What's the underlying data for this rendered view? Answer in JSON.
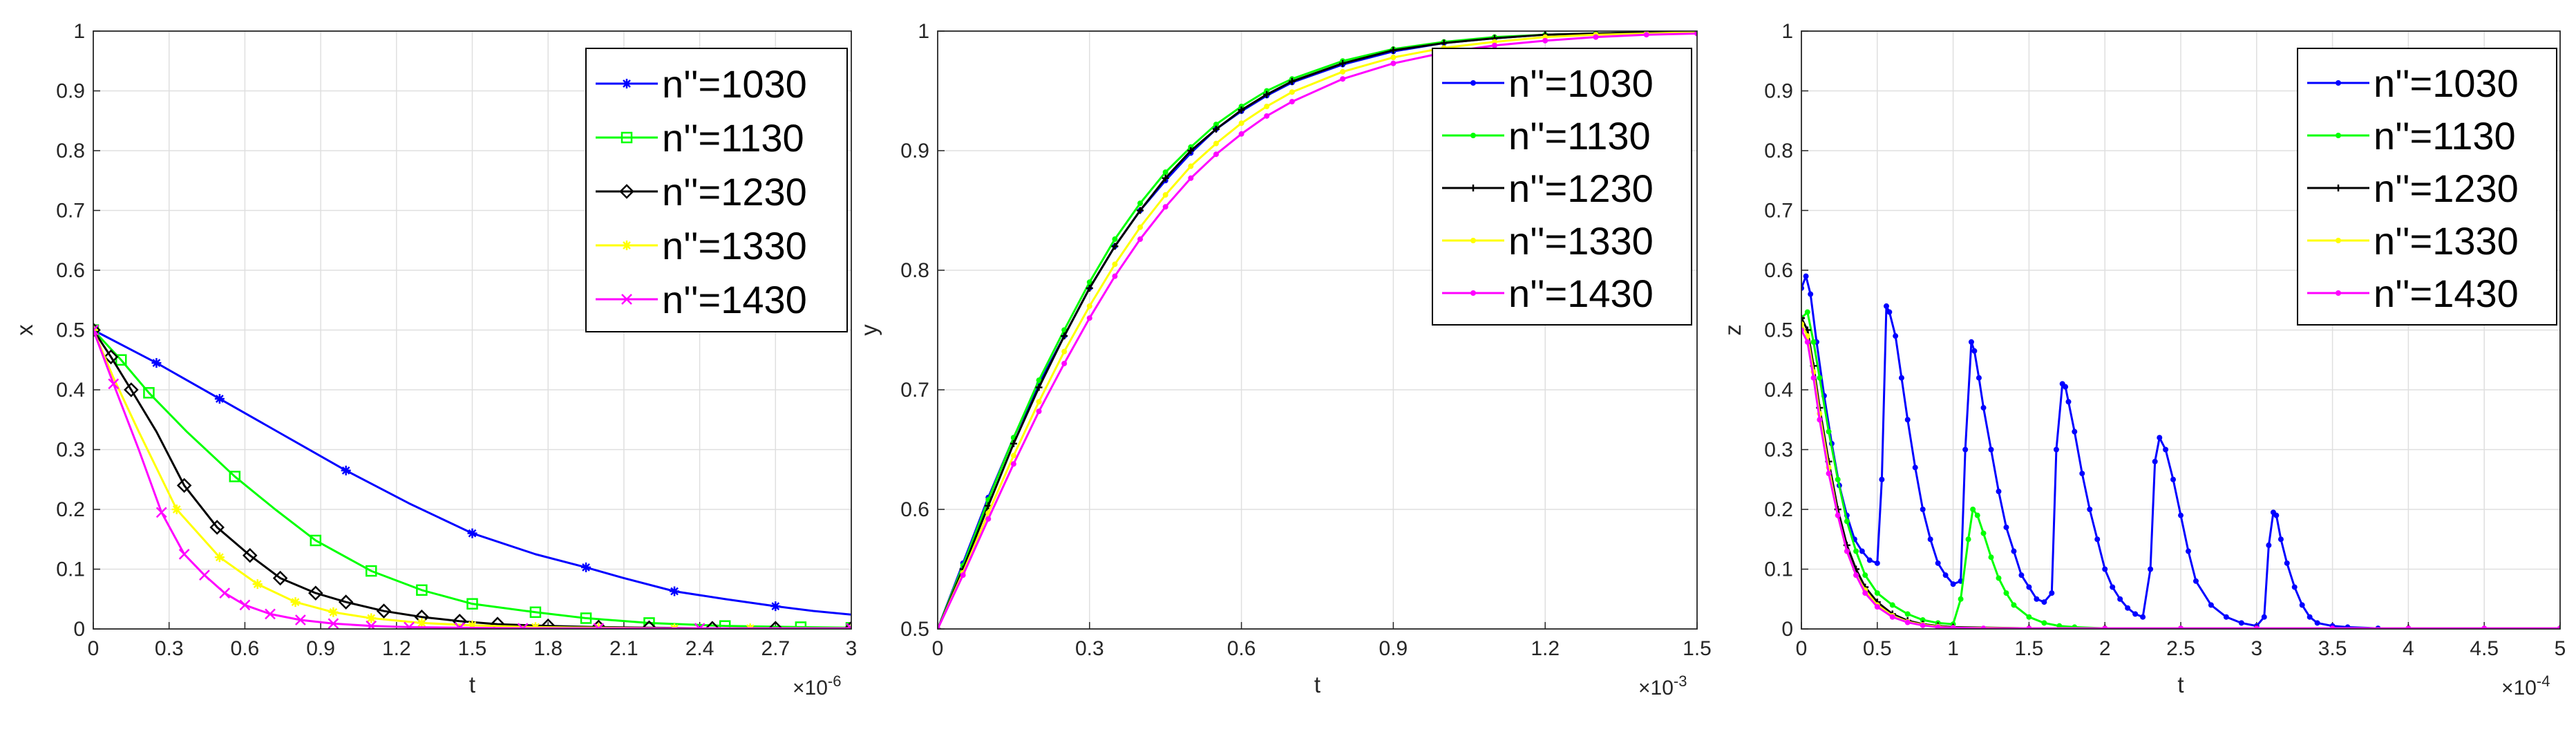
{
  "colors": {
    "n1030": "#0000FF",
    "n1130": "#00FF00",
    "n1230": "#000000",
    "n1330": "#FFFF00",
    "n1430": "#FF00FF",
    "grid": "#DFDFDF",
    "axis": "#262626"
  },
  "chart_data": [
    {
      "type": "line",
      "title": "",
      "xlabel": "t",
      "ylabel": "x",
      "x_exponent_label": "×10",
      "x_exponent": "-6",
      "xlim": [
        0,
        3
      ],
      "ylim": [
        0,
        1
      ],
      "xticks": [
        "0",
        "0.3",
        "0.6",
        "0.9",
        "1.2",
        "1.5",
        "1.8",
        "2.1",
        "2.4",
        "2.7",
        "3"
      ],
      "yticks": [
        "0",
        "0.1",
        "0.2",
        "0.3",
        "0.4",
        "0.5",
        "0.6",
        "0.7",
        "0.8",
        "0.9",
        "1"
      ],
      "grid": true,
      "legend_position": "top-right",
      "series": [
        {
          "name": "n''=1030",
          "color": "#0000FF",
          "marker": "star",
          "x": [
            0,
            0.25,
            0.5,
            0.75,
            1.0,
            1.25,
            1.5,
            1.75,
            1.95,
            2.1,
            2.3,
            2.5,
            2.7,
            2.85,
            3.0
          ],
          "y": [
            0.5,
            0.445,
            0.385,
            0.325,
            0.265,
            0.21,
            0.16,
            0.125,
            0.103,
            0.085,
            0.063,
            0.05,
            0.038,
            0.03,
            0.024
          ],
          "marker_idx": [
            0,
            1,
            2,
            4,
            6,
            8,
            10,
            12
          ]
        },
        {
          "name": "n''=1130",
          "color": "#00FF00",
          "marker": "square",
          "x": [
            0,
            0.11,
            0.22,
            0.37,
            0.56,
            0.72,
            0.88,
            1.1,
            1.3,
            1.5,
            1.75,
            1.95,
            2.2,
            2.5,
            2.8,
            3.0
          ],
          "y": [
            0.5,
            0.45,
            0.395,
            0.33,
            0.255,
            0.2,
            0.148,
            0.097,
            0.065,
            0.042,
            0.028,
            0.018,
            0.01,
            0.005,
            0.003,
            0.002
          ],
          "marker_idx": [
            0,
            1,
            2,
            4,
            6,
            7,
            8,
            9,
            10,
            11,
            12,
            13,
            14,
            15
          ]
        },
        {
          "name": "n''=1230",
          "color": "#000000",
          "marker": "diamond",
          "x": [
            0,
            0.07,
            0.15,
            0.25,
            0.36,
            0.49,
            0.62,
            0.74,
            0.88,
            1.0,
            1.15,
            1.3,
            1.45,
            1.6,
            1.8,
            2.0,
            2.2,
            2.45,
            2.7,
            3.0
          ],
          "y": [
            0.5,
            0.455,
            0.4,
            0.33,
            0.24,
            0.17,
            0.123,
            0.085,
            0.06,
            0.045,
            0.03,
            0.02,
            0.013,
            0.008,
            0.005,
            0.003,
            0.002,
            0.001,
            0.001,
            0.001
          ],
          "marker_idx": [
            0,
            1,
            2,
            4,
            5,
            6,
            7,
            8,
            9,
            10,
            11,
            12,
            13,
            14,
            15,
            16,
            17,
            18,
            19
          ]
        },
        {
          "name": "n''=1330",
          "color": "#FFFF00",
          "marker": "star",
          "x": [
            0,
            0.08,
            0.18,
            0.33,
            0.5,
            0.65,
            0.8,
            0.95,
            1.1,
            1.3,
            1.5,
            1.75,
            2.0,
            2.3,
            2.6,
            3.0
          ],
          "y": [
            0.5,
            0.42,
            0.33,
            0.2,
            0.12,
            0.075,
            0.045,
            0.028,
            0.018,
            0.01,
            0.006,
            0.003,
            0.002,
            0.001,
            0.001,
            0.001
          ],
          "marker_idx": [
            0,
            3,
            4,
            5,
            6,
            7,
            8,
            9,
            10,
            11,
            12,
            13,
            14,
            15
          ]
        },
        {
          "name": "n''=1430",
          "color": "#FF00FF",
          "marker": "x",
          "x": [
            0,
            0.08,
            0.18,
            0.27,
            0.36,
            0.44,
            0.52,
            0.6,
            0.7,
            0.82,
            0.95,
            1.1,
            1.25,
            1.45,
            1.7,
            2.0,
            2.4,
            3.0
          ],
          "y": [
            0.5,
            0.41,
            0.3,
            0.195,
            0.125,
            0.09,
            0.06,
            0.04,
            0.025,
            0.015,
            0.009,
            0.005,
            0.003,
            0.002,
            0.001,
            0.001,
            0.001,
            0.001
          ],
          "marker_idx": [
            0,
            1,
            3,
            4,
            5,
            6,
            7,
            8,
            9,
            10,
            11,
            12,
            13,
            14,
            15,
            16,
            17
          ]
        }
      ]
    },
    {
      "type": "line",
      "title": "",
      "xlabel": "t",
      "ylabel": "y",
      "x_exponent_label": "×10",
      "x_exponent": "-3",
      "xlim": [
        0,
        1.5
      ],
      "ylim": [
        0.5,
        1
      ],
      "xticks": [
        "0",
        "0.3",
        "0.6",
        "0.9",
        "1.2",
        "1.5"
      ],
      "yticks": [
        "0.5",
        "0.6",
        "0.7",
        "0.8",
        "0.9",
        "1"
      ],
      "grid": true,
      "legend_position": "top-right",
      "series": [
        {
          "name": "n''=1030",
          "color": "#0000FF",
          "marker": "dot",
          "x": [
            0,
            0.05,
            0.1,
            0.15,
            0.2,
            0.25,
            0.3,
            0.35,
            0.4,
            0.45,
            0.5,
            0.55,
            0.6,
            0.65,
            0.7,
            0.8,
            0.9,
            1.0,
            1.1,
            1.2,
            1.3,
            1.4,
            1.5
          ],
          "y": [
            0.5,
            0.555,
            0.61,
            0.66,
            0.705,
            0.745,
            0.785,
            0.82,
            0.85,
            0.875,
            0.898,
            0.918,
            0.933,
            0.946,
            0.957,
            0.972,
            0.983,
            0.99,
            0.994,
            0.997,
            0.998,
            0.999,
            1.0
          ],
          "marker_idx": "all"
        },
        {
          "name": "n''=1130",
          "color": "#00FF00",
          "marker": "dot",
          "x": [
            0,
            0.05,
            0.1,
            0.15,
            0.2,
            0.25,
            0.3,
            0.35,
            0.4,
            0.45,
            0.5,
            0.55,
            0.6,
            0.65,
            0.7,
            0.8,
            0.9,
            1.0,
            1.1,
            1.2,
            1.3,
            1.4,
            1.5
          ],
          "y": [
            0.5,
            0.553,
            0.608,
            0.66,
            0.708,
            0.75,
            0.79,
            0.826,
            0.856,
            0.882,
            0.903,
            0.922,
            0.937,
            0.95,
            0.96,
            0.975,
            0.985,
            0.991,
            0.995,
            0.997,
            0.998,
            0.999,
            1.0
          ],
          "marker_idx": "all"
        },
        {
          "name": "n''=1230",
          "color": "#000000",
          "marker": "plus",
          "x": [
            0,
            0.05,
            0.1,
            0.15,
            0.2,
            0.25,
            0.3,
            0.35,
            0.4,
            0.45,
            0.5,
            0.55,
            0.6,
            0.65,
            0.7,
            0.8,
            0.9,
            1.0,
            1.1,
            1.2,
            1.3,
            1.4,
            1.5
          ],
          "y": [
            0.5,
            0.55,
            0.603,
            0.655,
            0.702,
            0.745,
            0.785,
            0.82,
            0.85,
            0.877,
            0.9,
            0.918,
            0.934,
            0.947,
            0.958,
            0.973,
            0.984,
            0.99,
            0.994,
            0.997,
            0.998,
            0.999,
            1.0
          ],
          "marker_idx": "all"
        },
        {
          "name": "n''=1330",
          "color": "#FFFF00",
          "marker": "dot",
          "x": [
            0,
            0.05,
            0.1,
            0.15,
            0.2,
            0.25,
            0.3,
            0.35,
            0.4,
            0.45,
            0.5,
            0.55,
            0.6,
            0.65,
            0.7,
            0.8,
            0.9,
            1.0,
            1.1,
            1.2,
            1.3,
            1.4,
            1.5
          ],
          "y": [
            0.5,
            0.547,
            0.597,
            0.645,
            0.69,
            0.732,
            0.77,
            0.805,
            0.836,
            0.863,
            0.887,
            0.906,
            0.923,
            0.937,
            0.949,
            0.966,
            0.978,
            0.986,
            0.991,
            0.995,
            0.997,
            0.998,
            0.999
          ],
          "marker_idx": "all"
        },
        {
          "name": "n''=1430",
          "color": "#FF00FF",
          "marker": "dot",
          "x": [
            0,
            0.05,
            0.1,
            0.15,
            0.2,
            0.25,
            0.3,
            0.35,
            0.4,
            0.45,
            0.5,
            0.55,
            0.6,
            0.65,
            0.7,
            0.8,
            0.9,
            1.0,
            1.1,
            1.2,
            1.3,
            1.4,
            1.5
          ],
          "y": [
            0.5,
            0.545,
            0.592,
            0.638,
            0.682,
            0.722,
            0.76,
            0.795,
            0.826,
            0.853,
            0.877,
            0.897,
            0.914,
            0.929,
            0.941,
            0.96,
            0.973,
            0.982,
            0.988,
            0.992,
            0.995,
            0.997,
            0.998
          ],
          "marker_idx": "all"
        }
      ]
    },
    {
      "type": "line",
      "title": "",
      "xlabel": "t",
      "ylabel": "z",
      "x_exponent_label": "×10",
      "x_exponent": "-4",
      "xlim": [
        0,
        5
      ],
      "ylim": [
        0,
        1
      ],
      "xticks": [
        "0",
        "0.5",
        "1",
        "1.5",
        "2",
        "2.5",
        "3",
        "3.5",
        "4",
        "4.5",
        "5"
      ],
      "yticks": [
        "0",
        "0.1",
        "0.2",
        "0.3",
        "0.4",
        "0.5",
        "0.6",
        "0.7",
        "0.8",
        "0.9",
        "1"
      ],
      "grid": true,
      "legend_position": "top-right",
      "series": [
        {
          "name": "n''=1030",
          "color": "#0000FF",
          "marker": "dot",
          "x": [
            0,
            0.03,
            0.06,
            0.1,
            0.15,
            0.2,
            0.25,
            0.3,
            0.35,
            0.4,
            0.45,
            0.5,
            0.53,
            0.56,
            0.58,
            0.62,
            0.66,
            0.7,
            0.75,
            0.8,
            0.85,
            0.9,
            0.95,
            1.0,
            1.05,
            1.08,
            1.12,
            1.14,
            1.17,
            1.2,
            1.25,
            1.3,
            1.35,
            1.4,
            1.45,
            1.5,
            1.55,
            1.6,
            1.65,
            1.68,
            1.72,
            1.74,
            1.76,
            1.8,
            1.85,
            1.9,
            1.95,
            2.0,
            2.05,
            2.1,
            2.15,
            2.2,
            2.25,
            2.3,
            2.33,
            2.36,
            2.4,
            2.45,
            2.5,
            2.55,
            2.6,
            2.7,
            2.8,
            2.9,
            3.0,
            3.05,
            3.08,
            3.11,
            3.13,
            3.16,
            3.2,
            3.25,
            3.3,
            3.35,
            3.4,
            3.5,
            3.6,
            3.8,
            4.0,
            5.0
          ],
          "y": [
            0.57,
            0.59,
            0.56,
            0.48,
            0.39,
            0.31,
            0.24,
            0.19,
            0.15,
            0.13,
            0.115,
            0.11,
            0.25,
            0.54,
            0.53,
            0.49,
            0.42,
            0.35,
            0.27,
            0.2,
            0.15,
            0.11,
            0.09,
            0.075,
            0.08,
            0.3,
            0.48,
            0.465,
            0.42,
            0.37,
            0.3,
            0.23,
            0.17,
            0.13,
            0.09,
            0.07,
            0.05,
            0.045,
            0.06,
            0.3,
            0.41,
            0.405,
            0.38,
            0.33,
            0.26,
            0.2,
            0.15,
            0.1,
            0.07,
            0.05,
            0.035,
            0.025,
            0.02,
            0.1,
            0.28,
            0.32,
            0.3,
            0.25,
            0.19,
            0.13,
            0.08,
            0.04,
            0.02,
            0.01,
            0.005,
            0.02,
            0.14,
            0.195,
            0.19,
            0.15,
            0.11,
            0.07,
            0.04,
            0.02,
            0.01,
            0.005,
            0.003,
            0.001,
            0.001,
            0.001
          ],
          "marker_idx": "all"
        },
        {
          "name": "n''=1130",
          "color": "#00FF00",
          "marker": "dot",
          "x": [
            0,
            0.04,
            0.08,
            0.12,
            0.18,
            0.24,
            0.3,
            0.36,
            0.42,
            0.5,
            0.6,
            0.7,
            0.8,
            0.9,
            1.0,
            1.05,
            1.1,
            1.13,
            1.16,
            1.2,
            1.25,
            1.3,
            1.35,
            1.4,
            1.5,
            1.6,
            1.7,
            1.8,
            2.0,
            2.5,
            3.0,
            4.0,
            5.0
          ],
          "y": [
            0.52,
            0.53,
            0.48,
            0.42,
            0.33,
            0.25,
            0.18,
            0.13,
            0.09,
            0.06,
            0.04,
            0.025,
            0.015,
            0.01,
            0.008,
            0.05,
            0.15,
            0.2,
            0.19,
            0.16,
            0.12,
            0.085,
            0.06,
            0.04,
            0.02,
            0.01,
            0.005,
            0.003,
            0.001,
            0.001,
            0.001,
            0.001,
            0.001
          ],
          "marker_idx": "all"
        },
        {
          "name": "n''=1230",
          "color": "#000000",
          "marker": "plus",
          "x": [
            0,
            0.04,
            0.08,
            0.12,
            0.18,
            0.24,
            0.3,
            0.36,
            0.42,
            0.5,
            0.6,
            0.7,
            0.8,
            0.9,
            1.0,
            1.5,
            2.0,
            3.0,
            4.0,
            5.0
          ],
          "y": [
            0.52,
            0.5,
            0.44,
            0.37,
            0.28,
            0.2,
            0.14,
            0.1,
            0.07,
            0.045,
            0.025,
            0.014,
            0.008,
            0.005,
            0.003,
            0.001,
            0.001,
            0.001,
            0.001,
            0.001
          ],
          "marker_idx": "all"
        },
        {
          "name": "n''=1330",
          "color": "#FFFF00",
          "marker": "dot",
          "x": [
            0,
            0.04,
            0.08,
            0.12,
            0.18,
            0.24,
            0.3,
            0.36,
            0.42,
            0.5,
            0.6,
            0.7,
            0.8,
            0.9,
            1.0,
            1.5,
            2.0,
            3.0,
            4.0,
            5.0
          ],
          "y": [
            0.51,
            0.49,
            0.43,
            0.36,
            0.27,
            0.19,
            0.13,
            0.09,
            0.065,
            0.04,
            0.022,
            0.012,
            0.007,
            0.004,
            0.002,
            0.001,
            0.001,
            0.001,
            0.001,
            0.001
          ],
          "marker_idx": "all"
        },
        {
          "name": "n''=1430",
          "color": "#FF00FF",
          "marker": "dot",
          "x": [
            0,
            0.04,
            0.08,
            0.12,
            0.18,
            0.24,
            0.3,
            0.36,
            0.42,
            0.5,
            0.6,
            0.7,
            0.8,
            0.9,
            1.0,
            1.2,
            1.5,
            2.0,
            2.5,
            3.0,
            3.5,
            4.0,
            4.5,
            5.0
          ],
          "y": [
            0.5,
            0.48,
            0.42,
            0.35,
            0.26,
            0.19,
            0.13,
            0.09,
            0.06,
            0.037,
            0.02,
            0.011,
            0.006,
            0.003,
            0.002,
            0.001,
            0.001,
            0.001,
            0.001,
            0.001,
            0.001,
            0.001,
            0.001,
            0.001
          ],
          "marker_idx": "all"
        }
      ]
    }
  ]
}
